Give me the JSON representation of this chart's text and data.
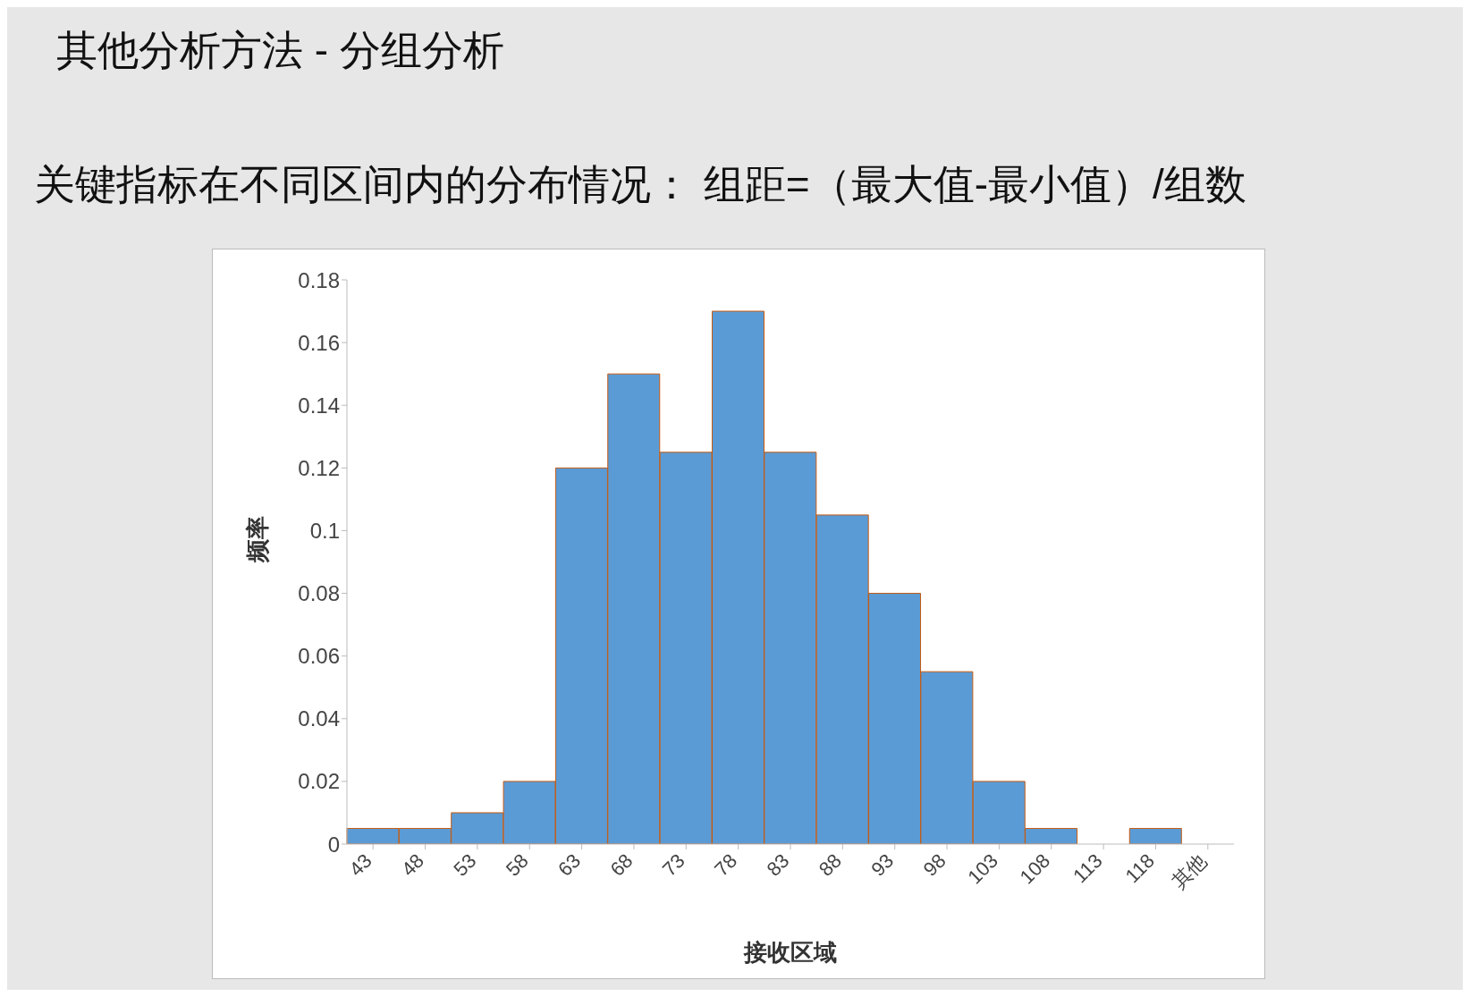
{
  "chart_data": {
    "type": "bar",
    "title": "其他分析方法  -  分组分析",
    "subtitle": "关键指标在不同区间内的分布情况：  组距=（最大值-最小值）/组数",
    "xlabel": "接收区域",
    "ylabel": "频率",
    "categories": [
      "43",
      "48",
      "53",
      "58",
      "63",
      "68",
      "73",
      "78",
      "83",
      "88",
      "93",
      "98",
      "103",
      "108",
      "113",
      "118",
      "其他"
    ],
    "values": [
      0.005,
      0.005,
      0.01,
      0.02,
      0.12,
      0.15,
      0.125,
      0.17,
      0.125,
      0.105,
      0.08,
      0.055,
      0.02,
      0.005,
      0,
      0.005,
      0
    ],
    "color": "#5b9bd5",
    "ylim": [
      0,
      0.18
    ],
    "yticks": [
      0,
      0.02,
      0.04,
      0.06,
      0.08,
      0.1,
      0.12,
      0.14,
      0.16,
      0.18
    ],
    "grid": false,
    "legend": false
  }
}
